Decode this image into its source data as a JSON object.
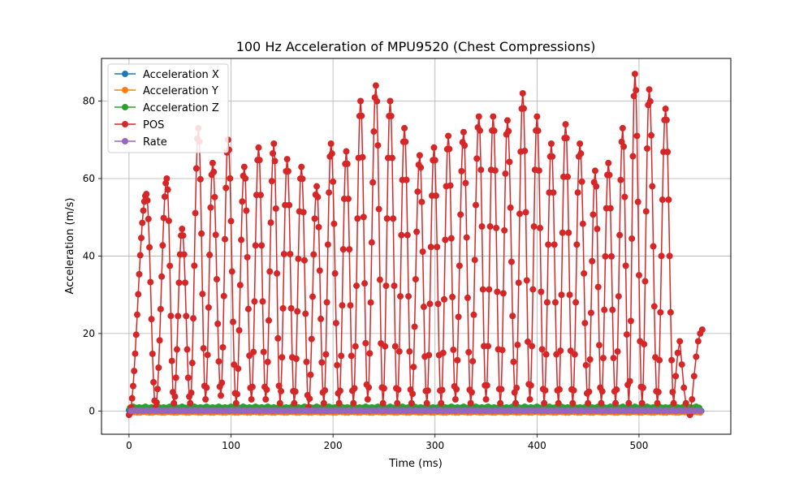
{
  "chart_data": {
    "type": "line",
    "title": "100 Hz Acceleration of MPU9520 (Chest Compressions)",
    "xlabel": "Time (ms)",
    "ylabel": "Acceleration (m/s)",
    "xlim": [
      -27,
      590
    ],
    "ylim": [
      -6,
      91
    ],
    "xticks": [
      0,
      100,
      200,
      300,
      400,
      500
    ],
    "yticks": [
      0,
      20,
      40,
      60,
      80
    ],
    "grid": true,
    "legend_position": "top-left",
    "x_start": 0,
    "x_step": 1,
    "x_count": 562,
    "series": [
      {
        "name": "Acceleration X",
        "color": "#1f77b4",
        "values": [
          0.2,
          0.1,
          0.3,
          0.0,
          0.2,
          -0.1,
          0.3,
          0.1,
          0.2,
          0.0,
          0.1,
          0.2
        ]
      },
      {
        "name": "Acceleration Y",
        "color": "#ff7f0e",
        "values": [
          -0.3,
          -0.5,
          -0.2,
          -0.6,
          -0.4,
          -0.3,
          -0.5,
          -0.2,
          -0.4,
          -0.6,
          -0.3,
          -0.4
        ]
      },
      {
        "name": "Acceleration Z",
        "color": "#2ca02c",
        "values": [
          1.0,
          0.8,
          1.2,
          0.7,
          1.1,
          0.9,
          1.3,
          0.8,
          1.0,
          1.2,
          0.9,
          1.1
        ]
      },
      {
        "name": "POS",
        "color": "#d62728",
        "peaks": [
          {
            "x": 17,
            "y": 56
          },
          {
            "x": 37,
            "y": 60
          },
          {
            "x": 52,
            "y": 47
          },
          {
            "x": 68,
            "y": 73
          },
          {
            "x": 82,
            "y": 64
          },
          {
            "x": 97,
            "y": 70
          },
          {
            "x": 113,
            "y": 63
          },
          {
            "x": 127,
            "y": 68
          },
          {
            "x": 142,
            "y": 69
          },
          {
            "x": 155,
            "y": 65
          },
          {
            "x": 169,
            "y": 63
          },
          {
            "x": 184,
            "y": 58
          },
          {
            "x": 198,
            "y": 69
          },
          {
            "x": 213,
            "y": 67
          },
          {
            "x": 227,
            "y": 80
          },
          {
            "x": 242,
            "y": 84
          },
          {
            "x": 256,
            "y": 80
          },
          {
            "x": 270,
            "y": 73
          },
          {
            "x": 285,
            "y": 66
          },
          {
            "x": 299,
            "y": 68
          },
          {
            "x": 313,
            "y": 71
          },
          {
            "x": 328,
            "y": 72
          },
          {
            "x": 343,
            "y": 76
          },
          {
            "x": 357,
            "y": 76
          },
          {
            "x": 371,
            "y": 75
          },
          {
            "x": 386,
            "y": 82
          },
          {
            "x": 400,
            "y": 76
          },
          {
            "x": 414,
            "y": 69
          },
          {
            "x": 428,
            "y": 74
          },
          {
            "x": 442,
            "y": 69
          },
          {
            "x": 457,
            "y": 62
          },
          {
            "x": 470,
            "y": 64
          },
          {
            "x": 484,
            "y": 73
          },
          {
            "x": 496,
            "y": 87
          },
          {
            "x": 510,
            "y": 83
          },
          {
            "x": 526,
            "y": 78
          }
        ],
        "troughs": [
          {
            "x": 0,
            "y": -1
          },
          {
            "x": 26,
            "y": 1
          },
          {
            "x": 44,
            "y": 2
          },
          {
            "x": 60,
            "y": 2
          },
          {
            "x": 75,
            "y": 3
          },
          {
            "x": 90,
            "y": 4
          },
          {
            "x": 105,
            "y": 2
          },
          {
            "x": 120,
            "y": 3
          },
          {
            "x": 134,
            "y": 3
          },
          {
            "x": 148,
            "y": 2
          },
          {
            "x": 162,
            "y": 2
          },
          {
            "x": 176,
            "y": 1
          },
          {
            "x": 191,
            "y": 2
          },
          {
            "x": 206,
            "y": 2
          },
          {
            "x": 220,
            "y": 2
          },
          {
            "x": 234,
            "y": 3
          },
          {
            "x": 249,
            "y": 2
          },
          {
            "x": 263,
            "y": 2
          },
          {
            "x": 277,
            "y": 2
          },
          {
            "x": 292,
            "y": 2
          },
          {
            "x": 306,
            "y": 2
          },
          {
            "x": 320,
            "y": 3
          },
          {
            "x": 335,
            "y": 2
          },
          {
            "x": 350,
            "y": 3
          },
          {
            "x": 364,
            "y": 2
          },
          {
            "x": 379,
            "y": 2
          },
          {
            "x": 393,
            "y": 3
          },
          {
            "x": 407,
            "y": 2
          },
          {
            "x": 421,
            "y": 2
          },
          {
            "x": 435,
            "y": 2
          },
          {
            "x": 450,
            "y": 2
          },
          {
            "x": 463,
            "y": 2
          },
          {
            "x": 477,
            "y": 2
          },
          {
            "x": 490,
            "y": 2
          },
          {
            "x": 503,
            "y": 2
          },
          {
            "x": 518,
            "y": 2
          },
          {
            "x": 534,
            "y": 2
          },
          {
            "x": 550,
            "y": -1
          }
        ],
        "tail": [
          {
            "x": 536,
            "y": 9
          },
          {
            "x": 538,
            "y": 15
          },
          {
            "x": 540,
            "y": 18
          },
          {
            "x": 542,
            "y": 12
          },
          {
            "x": 544,
            "y": 6
          },
          {
            "x": 546,
            "y": 2
          },
          {
            "x": 548,
            "y": 0
          },
          {
            "x": 550,
            "y": -1
          },
          {
            "x": 552,
            "y": 3
          },
          {
            "x": 554,
            "y": 9
          },
          {
            "x": 556,
            "y": 14
          },
          {
            "x": 558,
            "y": 18
          },
          {
            "x": 560,
            "y": 20
          },
          {
            "x": 562,
            "y": 21
          }
        ]
      },
      {
        "name": "Rate",
        "color": "#9467bd",
        "values": [
          0.0,
          0.1,
          0.0,
          0.1,
          0.0,
          0.1,
          0.0,
          0.1,
          0.0,
          0.1,
          0.0,
          0.1
        ]
      }
    ]
  }
}
